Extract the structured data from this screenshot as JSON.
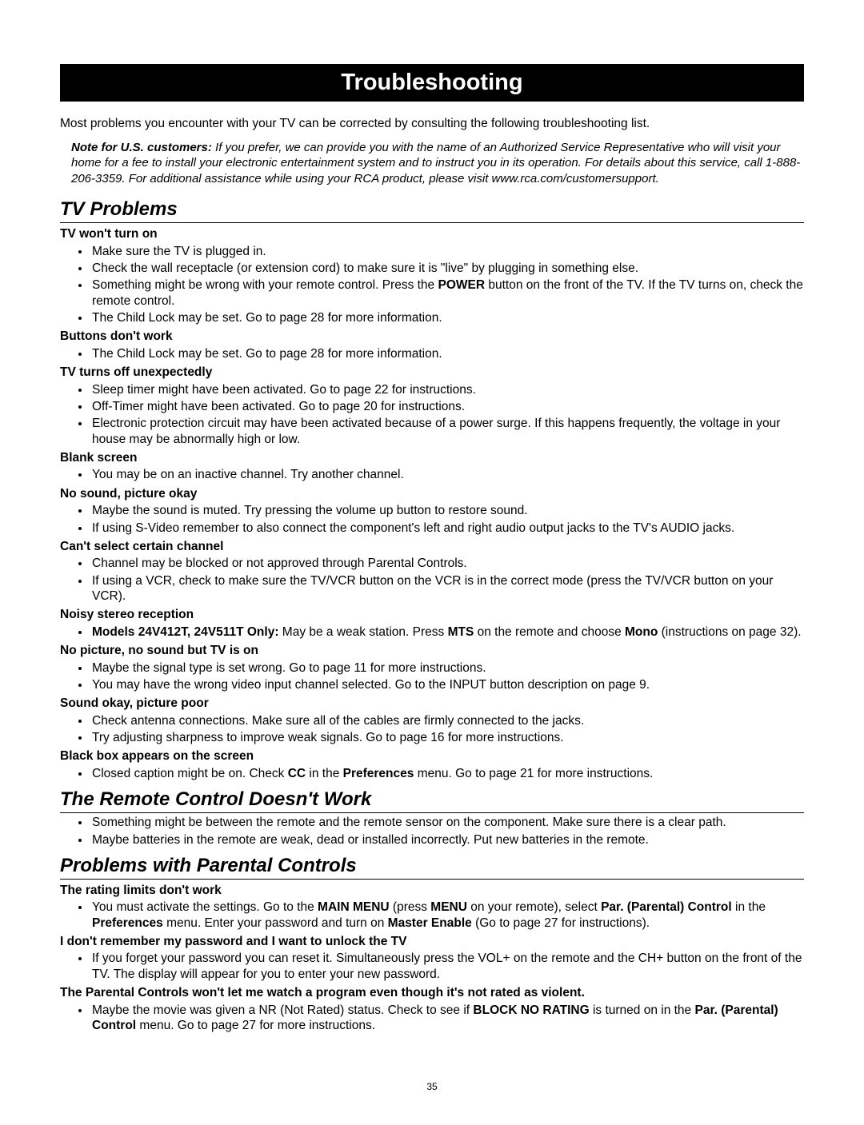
{
  "title": "Troubleshooting",
  "intro": "Most problems you encounter with your TV can be corrected by consulting the following troubleshooting list.",
  "note_lead": "Note for U.S. customers:",
  "note_body": " If you prefer, we can provide you with the name of an Authorized Service Representative who will visit your home for a fee to install your electronic entertainment system and to instruct you in its operation. For details about this service, call 1-888-206-3359. For additional assistance while using your RCA product, please visit www.rca.com/customersupport.",
  "section1": {
    "heading": "TV Problems",
    "groups": [
      {
        "sub": "TV won't turn on",
        "items": [
          "Make sure the TV is plugged in.",
          "Check the wall receptacle (or extension cord) to make sure it is \"live\" by plugging in something else.",
          "Something might be wrong with your remote control. Press the <b>POWER</b> button on the front of the TV. If the TV turns on, check the remote control.",
          "The Child Lock may be set. Go to page 28 for more information."
        ]
      },
      {
        "sub": "Buttons don't work",
        "items": [
          "The Child Lock may be set. Go to page 28 for more information."
        ]
      },
      {
        "sub": "TV turns off unexpectedly",
        "items": [
          "Sleep timer might have been activated. Go to page 22 for instructions.",
          "Off-Timer might have been activated. Go to page 20 for instructions.",
          "Electronic protection circuit may have been activated because of a power surge. If this happens frequently, the voltage in your house may be abnormally high or low."
        ]
      },
      {
        "sub": "Blank screen",
        "items": [
          "You may be on an inactive channel. Try another channel."
        ]
      },
      {
        "sub": "No sound, picture okay",
        "items": [
          "Maybe the sound is muted. Try pressing the volume up button to restore sound.",
          "If using S-Video remember to also connect the component's left and right audio output jacks to the TV's AUDIO jacks."
        ]
      },
      {
        "sub": "Can't select certain channel",
        "items": [
          "Channel may be blocked or not approved through Parental Controls.",
          "If using a VCR, check to make sure the TV/VCR button on the VCR is in the correct mode (press the TV/VCR button on your VCR)."
        ]
      },
      {
        "sub": "Noisy stereo reception",
        "items": [
          "<b>Models 24V412T, 24V511T Only:</b> May be a weak station. Press <b>MTS</b> on the remote and choose <b>Mono</b> (instructions on page 32)."
        ]
      },
      {
        "sub": "No picture, no sound but TV is on",
        "items": [
          "Maybe the signal type is set wrong. Go to page 11 for more instructions.",
          "You may have the wrong video input channel selected. Go to the INPUT button description on page 9."
        ]
      },
      {
        "sub": "Sound okay, picture poor",
        "items": [
          "Check antenna connections. Make sure all of the cables are firmly connected to the jacks.",
          "Try adjusting sharpness to improve weak signals. Go to page 16 for more instructions."
        ]
      },
      {
        "sub": "Black box appears on the screen",
        "items": [
          "Closed caption might be on. Check <b>CC</b> in the <b>Preferences</b> menu. Go to page 21 for more instructions."
        ]
      }
    ]
  },
  "section2": {
    "heading": "The Remote Control Doesn't Work",
    "items": [
      "Something might be between the remote and the remote sensor on the component. Make sure there is a clear path.",
      "Maybe batteries in the remote are weak, dead or installed incorrectly. Put new batteries in the remote."
    ]
  },
  "section3": {
    "heading": "Problems with Parental Controls",
    "groups": [
      {
        "sub": "The rating limits don't work",
        "items": [
          "You must activate the settings. Go to the <b>MAIN MENU</b> (press <b>MENU</b> on your remote), select <b>Par. (Parental) Control</b> in the <b>Preferences</b> menu. Enter your password and turn on <b>Master Enable</b> (Go to page 27 for instructions)."
        ]
      },
      {
        "sub": "I don't remember my password and I want to unlock the TV",
        "items": [
          "If you forget your password you can reset it. Simultaneously press the VOL+ on the remote and the CH+ button on the front of the TV. The display will appear for you to enter your new password."
        ]
      },
      {
        "sub": "The Parental Controls won't let me watch a program even though it's not rated as violent.",
        "items": [
          "Maybe the movie was given a NR (Not Rated) status. Check to see if <b>BLOCK NO RATING</b> is turned on in the <b>Par. (Parental) Control</b> menu. Go to page 27 for more instructions."
        ]
      }
    ]
  },
  "page_number": "35"
}
